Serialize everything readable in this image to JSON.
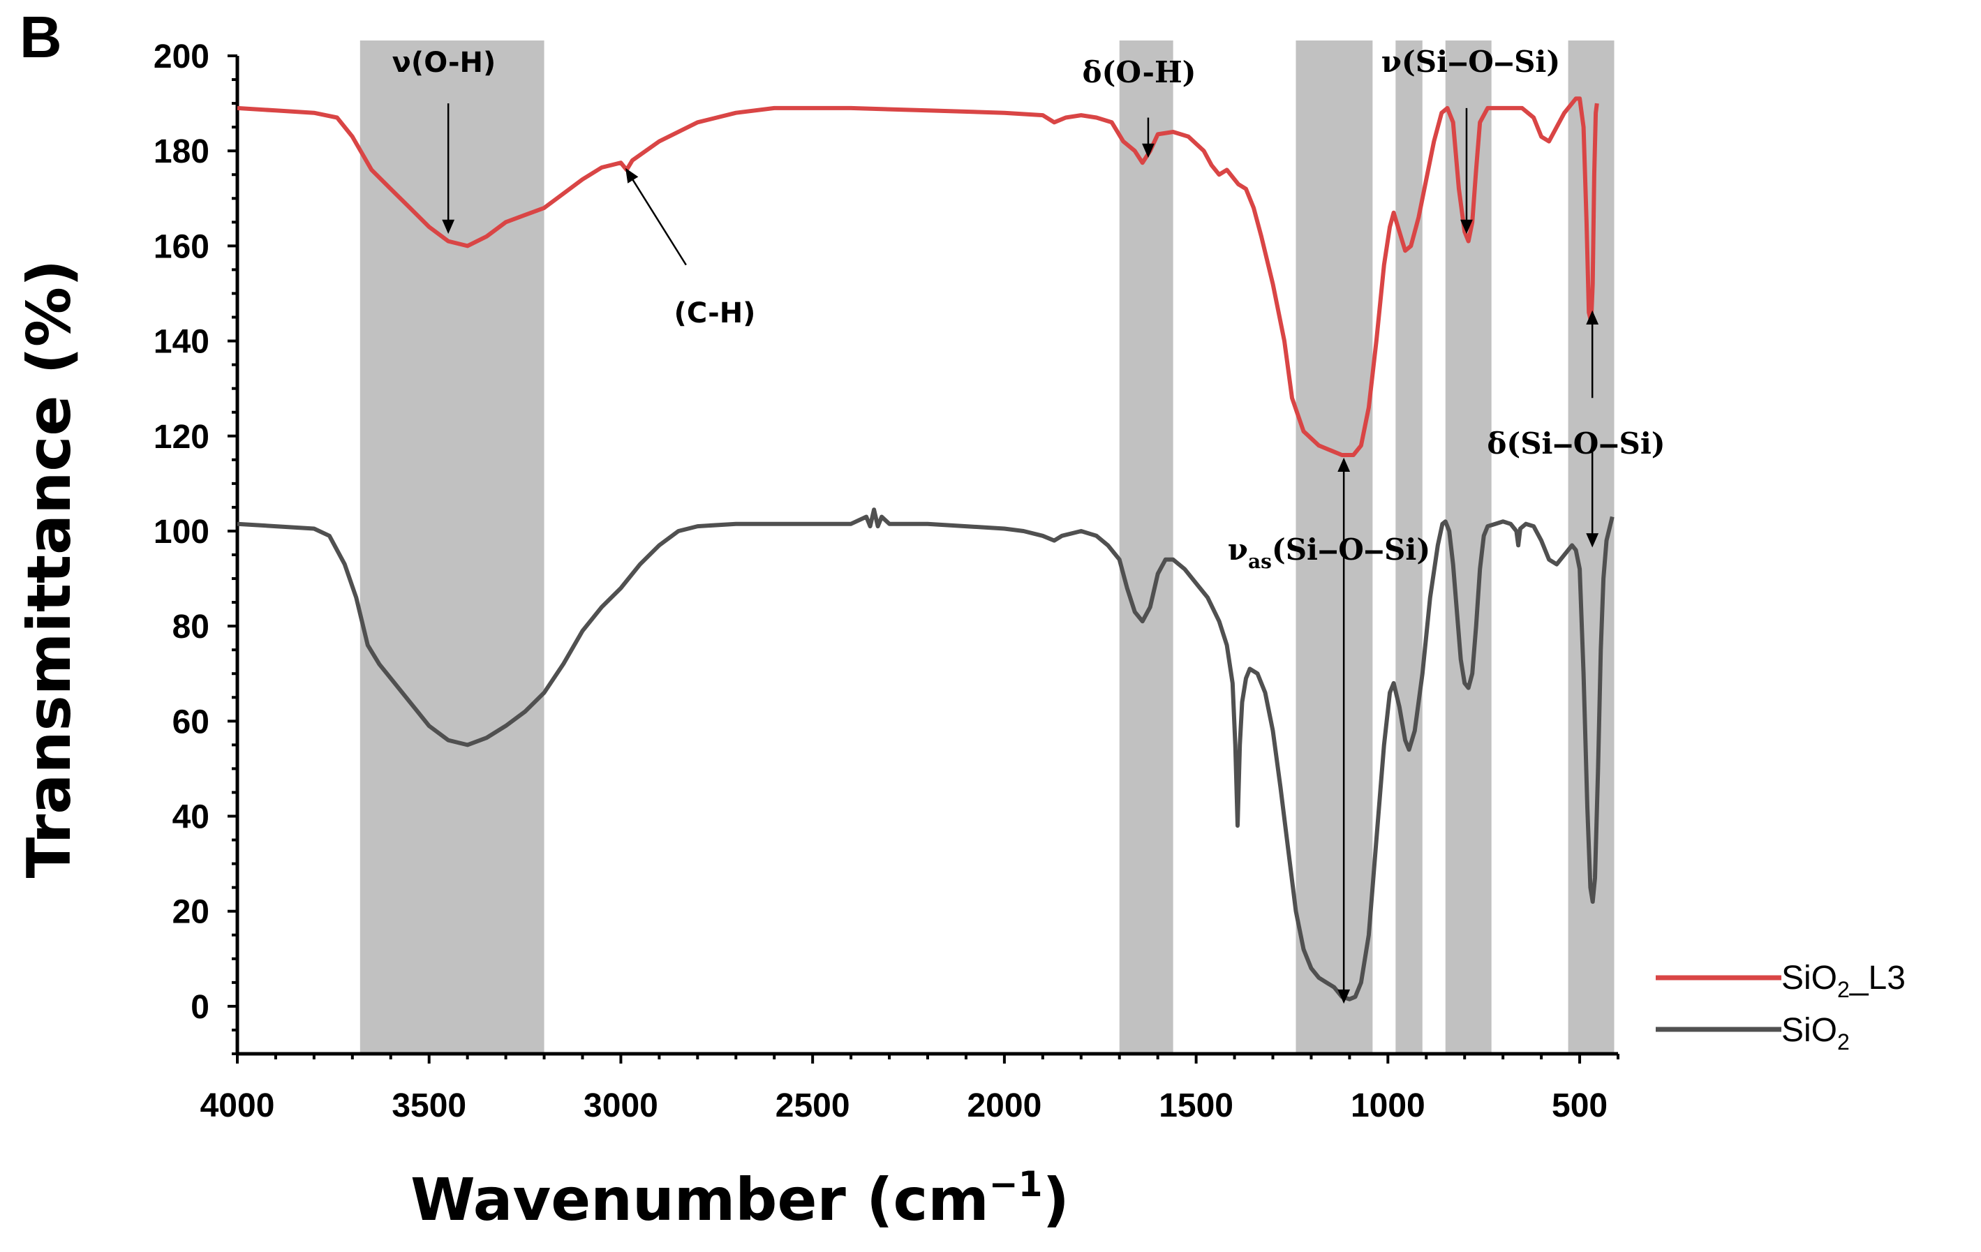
{
  "panel_label": "B",
  "chart_data": {
    "type": "line",
    "title": "",
    "xlabel": "Wavenumber (cm",
    "xlabel_sup": "−1",
    "xlabel_end": ")",
    "ylabel": "Transmittance (%)",
    "xlim": [
      4000,
      400
    ],
    "ylim": [
      -10,
      200
    ],
    "x_ticks": [
      4000,
      3500,
      3000,
      2500,
      2000,
      1500,
      1000,
      500
    ],
    "y_ticks": [
      0,
      20,
      40,
      60,
      80,
      100,
      120,
      140,
      160,
      180,
      200
    ],
    "bands": [
      {
        "from": 3680,
        "to": 3200
      },
      {
        "from": 1700,
        "to": 1560
      },
      {
        "from": 1240,
        "to": 1040
      },
      {
        "from": 980,
        "to": 910
      },
      {
        "from": 850,
        "to": 730
      },
      {
        "from": 530,
        "to": 410
      }
    ],
    "series": [
      {
        "name": "SiO2_L3",
        "legend_main": "SiO",
        "legend_sub": "2",
        "legend_suffix": "_L3",
        "color": "#d94545",
        "points": [
          [
            4000,
            189
          ],
          [
            3900,
            188.5
          ],
          [
            3800,
            188
          ],
          [
            3740,
            187
          ],
          [
            3700,
            183
          ],
          [
            3650,
            176
          ],
          [
            3600,
            172
          ],
          [
            3550,
            168
          ],
          [
            3500,
            164
          ],
          [
            3450,
            161
          ],
          [
            3400,
            160
          ],
          [
            3350,
            162
          ],
          [
            3300,
            165
          ],
          [
            3250,
            166.5
          ],
          [
            3200,
            168
          ],
          [
            3150,
            171
          ],
          [
            3100,
            174
          ],
          [
            3050,
            176.5
          ],
          [
            3000,
            177.5
          ],
          [
            2985,
            176
          ],
          [
            2970,
            178
          ],
          [
            2900,
            182
          ],
          [
            2800,
            186
          ],
          [
            2700,
            188
          ],
          [
            2600,
            189
          ],
          [
            2500,
            189
          ],
          [
            2400,
            189
          ],
          [
            2200,
            188.5
          ],
          [
            2000,
            188
          ],
          [
            1900,
            187.5
          ],
          [
            1870,
            186
          ],
          [
            1840,
            187
          ],
          [
            1800,
            187.5
          ],
          [
            1760,
            187
          ],
          [
            1720,
            186
          ],
          [
            1690,
            182
          ],
          [
            1660,
            180
          ],
          [
            1640,
            177.5
          ],
          [
            1620,
            180
          ],
          [
            1600,
            183.5
          ],
          [
            1560,
            184
          ],
          [
            1520,
            183
          ],
          [
            1480,
            180
          ],
          [
            1460,
            177
          ],
          [
            1440,
            175
          ],
          [
            1420,
            176
          ],
          [
            1390,
            173
          ],
          [
            1370,
            172
          ],
          [
            1350,
            168
          ],
          [
            1330,
            162
          ],
          [
            1300,
            152
          ],
          [
            1270,
            140
          ],
          [
            1250,
            128
          ],
          [
            1220,
            121
          ],
          [
            1180,
            118
          ],
          [
            1150,
            117
          ],
          [
            1120,
            116
          ],
          [
            1090,
            116
          ],
          [
            1070,
            118
          ],
          [
            1050,
            126
          ],
          [
            1030,
            140
          ],
          [
            1010,
            156
          ],
          [
            995,
            164
          ],
          [
            985,
            167
          ],
          [
            970,
            163
          ],
          [
            955,
            159
          ],
          [
            940,
            160
          ],
          [
            920,
            166
          ],
          [
            900,
            174
          ],
          [
            880,
            182
          ],
          [
            860,
            188
          ],
          [
            845,
            189
          ],
          [
            830,
            186
          ],
          [
            815,
            172
          ],
          [
            800,
            163
          ],
          [
            790,
            161
          ],
          [
            780,
            165
          ],
          [
            770,
            176
          ],
          [
            760,
            186
          ],
          [
            740,
            189
          ],
          [
            700,
            189
          ],
          [
            650,
            189
          ],
          [
            620,
            187
          ],
          [
            600,
            183
          ],
          [
            580,
            182
          ],
          [
            560,
            185
          ],
          [
            540,
            188
          ],
          [
            520,
            190
          ],
          [
            510,
            191
          ],
          [
            500,
            191
          ],
          [
            490,
            185
          ],
          [
            482,
            165
          ],
          [
            476,
            146
          ],
          [
            470,
            144
          ],
          [
            466,
            152
          ],
          [
            462,
            175
          ],
          [
            458,
            188
          ],
          [
            455,
            190
          ]
        ]
      },
      {
        "name": "SiO2",
        "legend_main": "SiO",
        "legend_sub": "2",
        "legend_suffix": "",
        "color": "#505050",
        "points": [
          [
            4000,
            101.5
          ],
          [
            3900,
            101
          ],
          [
            3800,
            100.5
          ],
          [
            3760,
            99
          ],
          [
            3720,
            93
          ],
          [
            3690,
            86
          ],
          [
            3660,
            76
          ],
          [
            3630,
            72
          ],
          [
            3600,
            69
          ],
          [
            3550,
            64
          ],
          [
            3500,
            59
          ],
          [
            3450,
            56
          ],
          [
            3400,
            55
          ],
          [
            3350,
            56.5
          ],
          [
            3300,
            59
          ],
          [
            3250,
            62
          ],
          [
            3200,
            66
          ],
          [
            3150,
            72
          ],
          [
            3100,
            79
          ],
          [
            3050,
            84
          ],
          [
            3000,
            88
          ],
          [
            2950,
            93
          ],
          [
            2900,
            97
          ],
          [
            2850,
            100
          ],
          [
            2800,
            101
          ],
          [
            2700,
            101.5
          ],
          [
            2600,
            101.5
          ],
          [
            2500,
            101.5
          ],
          [
            2400,
            101.5
          ],
          [
            2360,
            103
          ],
          [
            2350,
            101
          ],
          [
            2340,
            104.5
          ],
          [
            2330,
            101
          ],
          [
            2320,
            103
          ],
          [
            2300,
            101.5
          ],
          [
            2200,
            101.5
          ],
          [
            2100,
            101
          ],
          [
            2000,
            100.5
          ],
          [
            1950,
            100
          ],
          [
            1900,
            99
          ],
          [
            1870,
            98
          ],
          [
            1850,
            99
          ],
          [
            1800,
            100
          ],
          [
            1760,
            99
          ],
          [
            1730,
            97
          ],
          [
            1700,
            94
          ],
          [
            1680,
            88
          ],
          [
            1660,
            83
          ],
          [
            1640,
            81
          ],
          [
            1620,
            84
          ],
          [
            1600,
            91
          ],
          [
            1580,
            94
          ],
          [
            1560,
            94
          ],
          [
            1530,
            92
          ],
          [
            1500,
            89
          ],
          [
            1470,
            86
          ],
          [
            1440,
            81
          ],
          [
            1420,
            76
          ],
          [
            1405,
            68
          ],
          [
            1398,
            55
          ],
          [
            1392,
            38
          ],
          [
            1386,
            55
          ],
          [
            1380,
            64
          ],
          [
            1370,
            69
          ],
          [
            1360,
            71
          ],
          [
            1340,
            70
          ],
          [
            1320,
            66
          ],
          [
            1300,
            58
          ],
          [
            1280,
            46
          ],
          [
            1260,
            33
          ],
          [
            1240,
            20
          ],
          [
            1220,
            12
          ],
          [
            1200,
            8
          ],
          [
            1180,
            6
          ],
          [
            1160,
            5
          ],
          [
            1140,
            4
          ],
          [
            1120,
            2
          ],
          [
            1100,
            1.5
          ],
          [
            1085,
            2
          ],
          [
            1070,
            5
          ],
          [
            1050,
            15
          ],
          [
            1030,
            35
          ],
          [
            1010,
            55
          ],
          [
            995,
            66
          ],
          [
            985,
            68
          ],
          [
            970,
            63
          ],
          [
            955,
            56
          ],
          [
            945,
            54
          ],
          [
            930,
            58
          ],
          [
            910,
            70
          ],
          [
            890,
            86
          ],
          [
            870,
            97
          ],
          [
            858,
            101.5
          ],
          [
            850,
            102
          ],
          [
            840,
            100
          ],
          [
            830,
            93
          ],
          [
            820,
            83
          ],
          [
            810,
            73
          ],
          [
            800,
            68
          ],
          [
            790,
            67
          ],
          [
            780,
            70
          ],
          [
            770,
            80
          ],
          [
            760,
            92
          ],
          [
            750,
            99
          ],
          [
            740,
            101
          ],
          [
            720,
            101.5
          ],
          [
            700,
            102
          ],
          [
            680,
            101.5
          ],
          [
            665,
            100
          ],
          [
            660,
            97
          ],
          [
            655,
            100.5
          ],
          [
            640,
            101.5
          ],
          [
            620,
            101
          ],
          [
            600,
            98
          ],
          [
            580,
            94
          ],
          [
            560,
            93
          ],
          [
            540,
            95
          ],
          [
            520,
            97
          ],
          [
            510,
            96
          ],
          [
            500,
            92
          ],
          [
            490,
            70
          ],
          [
            480,
            42
          ],
          [
            472,
            25
          ],
          [
            466,
            22
          ],
          [
            460,
            27
          ],
          [
            452,
            50
          ],
          [
            445,
            75
          ],
          [
            438,
            90
          ],
          [
            430,
            98
          ],
          [
            415,
            103
          ]
        ]
      }
    ],
    "annotations": [
      {
        "text": "ν(O-H)"
      },
      {
        "text": "(C-H)"
      },
      {
        "text": "δ(O-H)"
      },
      {
        "text": "ν(Si‒O‒Si)"
      },
      {
        "text": "δ(Si‒O‒Si)"
      },
      {
        "text_main": "ν",
        "text_sub": "as",
        "text_tail": "(Si‒O‒Si)"
      }
    ]
  }
}
